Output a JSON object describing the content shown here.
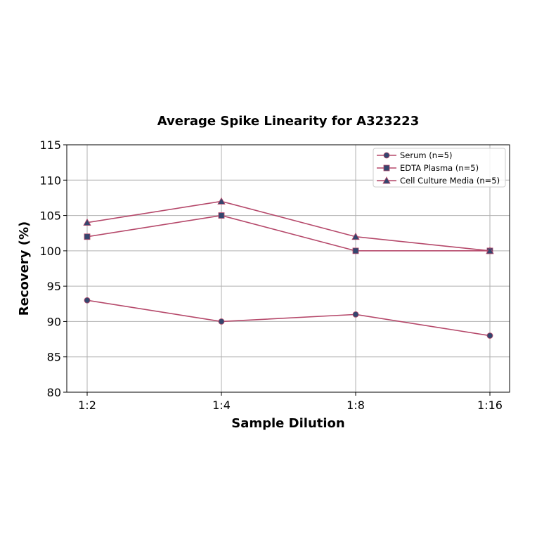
{
  "chart_data": {
    "type": "line",
    "title": "Average Spike Linearity for A323223",
    "xlabel": "Sample Dilution",
    "ylabel": "Recovery (%)",
    "categories": [
      "1:2",
      "1:4",
      "1:8",
      "1:16"
    ],
    "ylim": [
      80,
      115
    ],
    "yticks": [
      80,
      85,
      90,
      95,
      100,
      105,
      110,
      115
    ],
    "grid": true,
    "legend_position": "upper right",
    "series": [
      {
        "name": "Serum (n=5)",
        "marker": "circle",
        "values": [
          93,
          90,
          91,
          88
        ]
      },
      {
        "name": "EDTA Plasma (n=5)",
        "marker": "square",
        "values": [
          102,
          105,
          100,
          100
        ]
      },
      {
        "name": "Cell Culture Media (n=5)",
        "marker": "triangle",
        "values": [
          104,
          107,
          102,
          100
        ]
      }
    ],
    "colors": {
      "line": "#b5486a",
      "marker_fill": "#34466e",
      "grid": "#b0b0b0"
    }
  }
}
